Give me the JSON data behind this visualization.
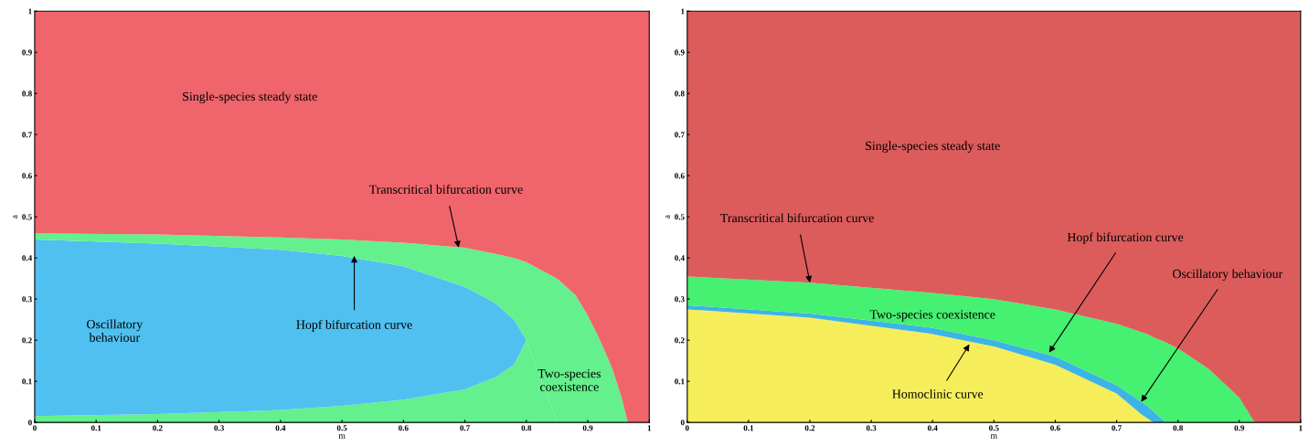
{
  "chart_data": [
    {
      "type": "area",
      "stacked": true,
      "xlabel": "m",
      "ylabel": "a",
      "xlim": [
        0,
        1
      ],
      "ylim": [
        0,
        1
      ],
      "xticks": [
        0,
        0.1,
        0.2,
        0.3,
        0.4,
        0.5,
        0.6,
        0.7,
        0.8,
        0.9,
        1
      ],
      "yticks": [
        0,
        0.1,
        0.2,
        0.3,
        0.4,
        0.5,
        0.6,
        0.7,
        0.8,
        0.9,
        1
      ],
      "x": [
        0,
        0.2,
        0.4,
        0.5,
        0.6,
        0.7,
        0.75,
        0.78,
        0.8,
        0.85,
        0.88,
        0.9,
        0.92,
        0.94,
        0.955,
        0.965,
        1
      ],
      "series": [
        {
          "color": "#64f08c",
          "values": [
            0.015,
            0.02,
            0.03,
            0.04,
            0.055,
            0.08,
            0.11,
            0.14,
            0.2,
            0,
            0,
            0,
            0,
            0,
            0,
            0,
            0
          ]
        },
        {
          "color": "#50c0f0",
          "values": [
            0.43,
            0.415,
            0.39,
            0.365,
            0.325,
            0.25,
            0.18,
            0.11,
            0,
            0,
            0,
            0,
            0,
            0,
            0,
            0,
            0
          ]
        },
        {
          "color": "#64f08c",
          "values": [
            0.015,
            0.022,
            0.03,
            0.04,
            0.057,
            0.095,
            0.12,
            0.15,
            0.19,
            0.35,
            0.31,
            0.26,
            0.2,
            0.13,
            0.06,
            0,
            0
          ]
        },
        {
          "color": "#f0646c",
          "values": [
            0.54,
            0.543,
            0.55,
            0.555,
            0.563,
            0.575,
            0.59,
            0.6,
            0.61,
            0.65,
            0.69,
            0.74,
            0.8,
            0.87,
            0.94,
            1,
            1
          ]
        }
      ],
      "annotations": [
        "Single-species steady state",
        {
          "text": "Transcritical bifurcation curve",
          "x": 0.69,
          "y": 0.425
        },
        {
          "text": "Hopf bifurcation curve",
          "x": 0.52,
          "y": 0.405
        },
        "Oscillatory\nbehaviour",
        "Two-species\ncoexistence"
      ]
    },
    {
      "type": "area",
      "stacked": true,
      "xlabel": "m",
      "ylabel": "a",
      "xlim": [
        0,
        1
      ],
      "ylim": [
        0,
        1
      ],
      "xticks": [
        0,
        0.1,
        0.2,
        0.3,
        0.4,
        0.5,
        0.6,
        0.7,
        0.8,
        0.9,
        1
      ],
      "yticks": [
        0,
        0.1,
        0.2,
        0.3,
        0.4,
        0.5,
        0.6,
        0.7,
        0.8,
        0.9,
        1
      ],
      "x": [
        0,
        0.2,
        0.4,
        0.5,
        0.6,
        0.7,
        0.74,
        0.75,
        0.76,
        0.78,
        0.8,
        0.85,
        0.9,
        0.925,
        1
      ],
      "series": [
        {
          "color": "#f5ee5a",
          "values": [
            0.275,
            0.255,
            0.215,
            0.185,
            0.14,
            0.07,
            0.02,
            0.01,
            0,
            0,
            0,
            0,
            0,
            0,
            0
          ]
        },
        {
          "color": "#3cb4e6",
          "values": [
            0.01,
            0.01,
            0.015,
            0.015,
            0.02,
            0.02,
            0.03,
            0.03,
            0.027,
            0,
            0,
            0,
            0,
            0,
            0
          ]
        },
        {
          "color": "#46f070",
          "values": [
            0.07,
            0.075,
            0.085,
            0.1,
            0.115,
            0.15,
            0.17,
            0.175,
            0.18,
            0.195,
            0.18,
            0.13,
            0.06,
            0,
            0
          ]
        },
        {
          "color": "#dc5c5c",
          "values": [
            0.645,
            0.66,
            0.685,
            0.7,
            0.725,
            0.76,
            0.78,
            0.785,
            0.793,
            0.805,
            0.82,
            0.87,
            0.94,
            1,
            1
          ]
        }
      ],
      "annotations": [
        "Single-species steady state",
        {
          "text": "Transcritical bifurcation curve",
          "x": 0.2,
          "y": 0.34
        },
        {
          "text": "Hopf bifurcation curve",
          "x": 0.59,
          "y": 0.17
        },
        "Two-species coexistence",
        {
          "text": "Homoclinic curve",
          "x": 0.46,
          "y": 0.19
        },
        {
          "text": "Oscillatory behaviour",
          "x": 0.74,
          "y": 0.05
        }
      ]
    }
  ]
}
